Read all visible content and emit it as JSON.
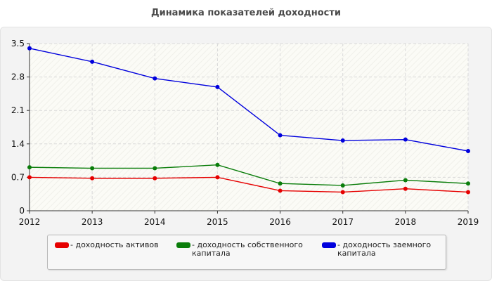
{
  "chart_data": {
    "type": "line",
    "title": "Динамика показателей доходности",
    "xlabel": "",
    "ylabel": "",
    "x": [
      "2012",
      "2013",
      "2014",
      "2015",
      "2016",
      "2017",
      "2018",
      "2019"
    ],
    "ylim": [
      0,
      3.5
    ],
    "yticks": [
      "0",
      "0.7",
      "1.4",
      "2.1",
      "2.8",
      "3.5"
    ],
    "grid": true,
    "legend_position": "bottom",
    "series": [
      {
        "name": "- доходность активов",
        "color": "#e60000",
        "values": [
          0.7,
          0.68,
          0.68,
          0.7,
          0.42,
          0.39,
          0.46,
          0.39
        ]
      },
      {
        "name": "- доходность собственного капитала",
        "color": "#0a7d0a",
        "values": [
          0.91,
          0.89,
          0.89,
          0.96,
          0.57,
          0.53,
          0.64,
          0.57
        ]
      },
      {
        "name": "- доходность заемного капитала",
        "color": "#0000dd",
        "values": [
          3.4,
          3.12,
          2.77,
          2.59,
          1.58,
          1.47,
          1.49,
          1.25
        ]
      }
    ]
  }
}
